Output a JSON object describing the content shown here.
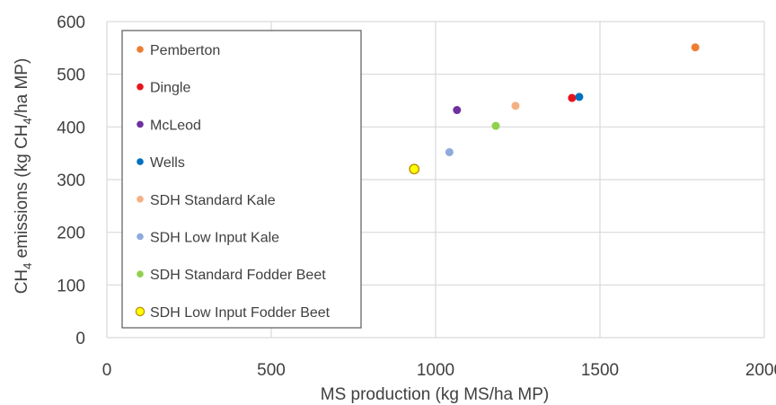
{
  "chart_data": {
    "type": "scatter",
    "xlabel": "MS production (kg MS/ha MP)",
    "ylabel": {
      "prefix": "CH",
      "sub": "4",
      "middle": " emissions (kg CH",
      "sub2": "4",
      "suffix": "/ha MP)"
    },
    "xlim": [
      0,
      2000
    ],
    "ylim": [
      0,
      600
    ],
    "x_ticks": [
      0,
      500,
      1000,
      1500,
      2000
    ],
    "y_ticks": [
      0,
      100,
      200,
      300,
      400,
      500,
      600
    ],
    "x_tick_labels": [
      "0",
      "500",
      "1000",
      "1500",
      "2000"
    ],
    "y_tick_labels": [
      "0",
      "100",
      "200",
      "300",
      "400",
      "500",
      "600"
    ],
    "grid": true,
    "legend_position": "top-left",
    "series": [
      {
        "name": "Pemberton",
        "color": "#ED7D31",
        "points": [
          {
            "x": 1790,
            "y": 551
          }
        ]
      },
      {
        "name": "Dingle",
        "color": "#E8141C",
        "points": [
          {
            "x": 1415,
            "y": 455
          }
        ]
      },
      {
        "name": "McLeod",
        "color": "#7030A0",
        "points": [
          {
            "x": 1065,
            "y": 432
          }
        ]
      },
      {
        "name": "Wells",
        "color": "#0070C0",
        "points": [
          {
            "x": 1437,
            "y": 457
          }
        ]
      },
      {
        "name": "SDH Standard Kale",
        "color": "#F4B183",
        "points": [
          {
            "x": 1243,
            "y": 440
          }
        ]
      },
      {
        "name": "SDH Low Input Kale",
        "color": "#8FAADC",
        "points": [
          {
            "x": 1042,
            "y": 352
          }
        ]
      },
      {
        "name": "SDH Standard Fodder Beet",
        "color": "#92D050",
        "points": [
          {
            "x": 1183,
            "y": 402
          }
        ]
      },
      {
        "name": "SDH Low Input Fodder Beet",
        "color": "#FFFF00",
        "outline": "#BF9000",
        "points": [
          {
            "x": 935,
            "y": 320
          }
        ]
      }
    ]
  }
}
